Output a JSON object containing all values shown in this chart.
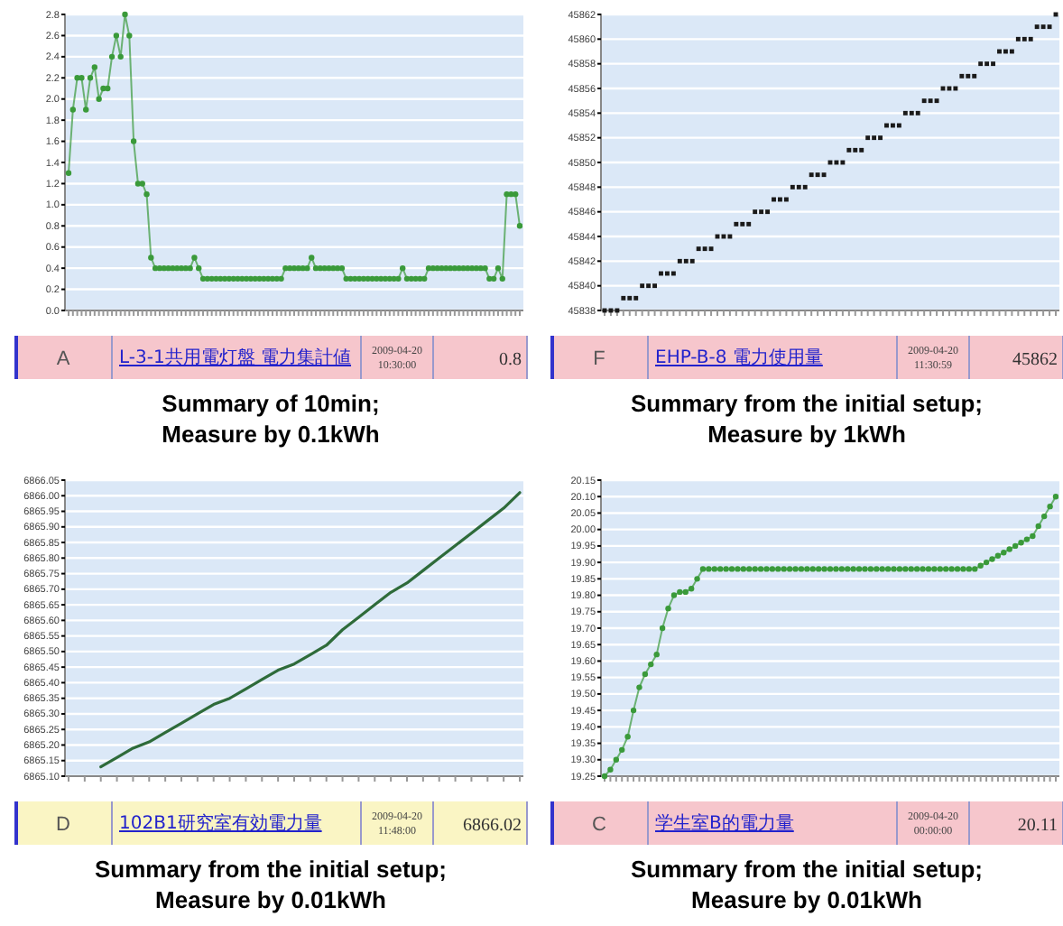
{
  "chart_data": [
    {
      "type": "line",
      "title": "Summary of 10min;",
      "subtitle": "Measure by 0.1kWh",
      "marker": "circle",
      "grid": "y",
      "ylim": [
        0,
        2.8
      ],
      "yticks": [
        {
          "value": 0,
          "label": "0.0"
        },
        0.2,
        0.4,
        0.6,
        0.8,
        {
          "value": 1,
          "label": "1.0"
        },
        1.2,
        1.4,
        1.6,
        1.8,
        {
          "value": 2,
          "label": "2.0"
        },
        2.2,
        2.4,
        2.6,
        2.8
      ],
      "annotations": [
        "A",
        "L-3-1共用電灯盤 電力集計値",
        "2009-04-20 10:30:00",
        "0.8"
      ],
      "categories": [
        null,
        null,
        null,
        null,
        null,
        null,
        null,
        null,
        null,
        null,
        null,
        null,
        null,
        null,
        null,
        null,
        null,
        null,
        null,
        null,
        null,
        null,
        null,
        null,
        null,
        null,
        null,
        null,
        null,
        null,
        null,
        null,
        null,
        null,
        null,
        null,
        null,
        null,
        null,
        null,
        null,
        null,
        null,
        null,
        null,
        null,
        null,
        null,
        null,
        null,
        null,
        null,
        null,
        null,
        null,
        null,
        null,
        null,
        null,
        null,
        null,
        null,
        null,
        null,
        null,
        null,
        null,
        null,
        null,
        null,
        null,
        null,
        null,
        null,
        null,
        null,
        null,
        null,
        null,
        null,
        null,
        null,
        null,
        null,
        null,
        null,
        null,
        null,
        null,
        null,
        null,
        null,
        null,
        null,
        null,
        null,
        null,
        null,
        null,
        null,
        null,
        null,
        null,
        null,
        null
      ],
      "series": [
        {
          "color": "#3a9a3a",
          "values": [
            1.3,
            1.9,
            2.2,
            2.2,
            1.9,
            2.2,
            2.3,
            2.0,
            2.1,
            2.1,
            2.4,
            2.6,
            2.4,
            2.8,
            2.6,
            1.6,
            1.2,
            1.2,
            1.1,
            0.5,
            0.4,
            0.4,
            0.4,
            0.4,
            0.4,
            0.4,
            0.4,
            0.4,
            0.4,
            0.5,
            0.4,
            0.3,
            0.3,
            0.3,
            0.3,
            0.3,
            0.3,
            0.3,
            0.3,
            0.3,
            0.3,
            0.3,
            0.3,
            0.3,
            0.3,
            0.3,
            0.3,
            0.3,
            0.3,
            0.3,
            0.4,
            0.4,
            0.4,
            0.4,
            0.4,
            0.4,
            0.5,
            0.4,
            0.4,
            0.4,
            0.4,
            0.4,
            0.4,
            0.4,
            0.3,
            0.3,
            0.3,
            0.3,
            0.3,
            0.3,
            0.3,
            0.3,
            0.3,
            0.3,
            0.3,
            0.3,
            0.3,
            0.4,
            0.3,
            0.3,
            0.3,
            0.3,
            0.3,
            0.4,
            0.4,
            0.4,
            0.4,
            0.4,
            0.4,
            0.4,
            0.4,
            0.4,
            0.4,
            0.4,
            0.4,
            0.4,
            0.4,
            0.3,
            0.3,
            0.4,
            0.3,
            1.1,
            1.1,
            1.1,
            0.8
          ]
        }
      ]
    },
    {
      "type": "scatter",
      "title": "Summary from the initial setup;",
      "subtitle": "Measure by 1kWh",
      "marker": "square",
      "grid": "y",
      "ylim": [
        45838,
        45862
      ],
      "yticks": [
        45838,
        45840,
        45842,
        45844,
        45846,
        45848,
        45850,
        45852,
        45854,
        45856,
        45858,
        45860,
        45862
      ],
      "annotations": [
        "F",
        "EHP-B-8 電力使用量",
        "2009-04-20 11:30:59",
        "45862"
      ],
      "categories": [
        null,
        null,
        null,
        null,
        null,
        null,
        null,
        null,
        null,
        null,
        null,
        null,
        null,
        null,
        null,
        null,
        null,
        null,
        null,
        null,
        null,
        null,
        null,
        null,
        null,
        null,
        null,
        null,
        null,
        null,
        null,
        null,
        null,
        null,
        null,
        null,
        null,
        null,
        null,
        null,
        null,
        null,
        null,
        null,
        null,
        null,
        null,
        null,
        null,
        null,
        null,
        null,
        null,
        null,
        null,
        null,
        null,
        null,
        null,
        null,
        null,
        null,
        null,
        null,
        null,
        null,
        null,
        null,
        null,
        null,
        null,
        null,
        null
      ],
      "series": [
        {
          "color": "#1a1a1a",
          "values": [
            45838,
            45838,
            45838,
            45839,
            45839,
            45839,
            45840,
            45840,
            45840,
            45841,
            45841,
            45841,
            45842,
            45842,
            45842,
            45843,
            45843,
            45843,
            45844,
            45844,
            45844,
            45845,
            45845,
            45845,
            45846,
            45846,
            45846,
            45847,
            45847,
            45847,
            45848,
            45848,
            45848,
            45849,
            45849,
            45849,
            45850,
            45850,
            45850,
            45851,
            45851,
            45851,
            45852,
            45852,
            45852,
            45853,
            45853,
            45853,
            45854,
            45854,
            45854,
            45855,
            45855,
            45855,
            45856,
            45856,
            45856,
            45857,
            45857,
            45857,
            45858,
            45858,
            45858,
            45859,
            45859,
            45859,
            45860,
            45860,
            45860,
            45861,
            45861,
            45861,
            45862
          ]
        }
      ]
    },
    {
      "type": "line",
      "title": "Summary from the initial setup;",
      "subtitle": "Measure by 0.01kWh",
      "grid": "y",
      "ylim": [
        6865.1,
        6866.05
      ],
      "yticks": [
        {
          "value": 6865.1,
          "label": "6865.10"
        },
        6865.15,
        {
          "value": 6865.2,
          "label": "6865.20"
        },
        6865.25,
        {
          "value": 6865.3,
          "label": "6865.30"
        },
        6865.35,
        {
          "value": 6865.4,
          "label": "6865.40"
        },
        6865.45,
        {
          "value": 6865.5,
          "label": "6865.50"
        },
        6865.55,
        {
          "value": 6865.6,
          "label": "6865.60"
        },
        6865.65,
        {
          "value": 6865.7,
          "label": "6865.70"
        },
        6865.75,
        {
          "value": 6865.8,
          "label": "6865.80"
        },
        6865.85,
        {
          "value": 6865.9,
          "label": "6865.90"
        },
        6865.95,
        {
          "value": 6866,
          "label": "6866.00"
        },
        6866.05
      ],
      "annotations": [
        "D",
        "102B1研究室有効電力量",
        "2009-04-20 11:48:00",
        "6866.02"
      ],
      "categories": [
        null,
        null,
        null,
        null,
        null,
        null,
        null,
        null,
        null,
        null,
        null,
        null,
        null,
        null,
        null,
        null,
        null,
        null,
        null,
        null,
        null,
        null,
        null,
        null,
        null,
        null,
        null,
        null,
        null
      ],
      "series": [
        {
          "color": "#2e6b3a",
          "values": [
            null,
            null,
            6865.13,
            6865.16,
            6865.19,
            6865.21,
            6865.24,
            6865.27,
            6865.3,
            6865.33,
            6865.35,
            6865.38,
            6865.41,
            6865.44,
            6865.46,
            6865.49,
            6865.52,
            6865.57,
            6865.61,
            6865.65,
            6865.69,
            6865.72,
            6865.76,
            6865.8,
            6865.84,
            6865.88,
            6865.92,
            6865.96,
            6866.01
          ]
        }
      ]
    },
    {
      "type": "line",
      "title": "Summary from the initial setup;",
      "subtitle": "Measure by 0.01kWh",
      "marker": "circle",
      "grid": "y",
      "ylim": [
        19.25,
        20.15
      ],
      "yticks": [
        19.25,
        {
          "value": 19.3,
          "label": "19.30"
        },
        19.35,
        {
          "value": 19.4,
          "label": "19.40"
        },
        19.45,
        {
          "value": 19.5,
          "label": "19.50"
        },
        19.55,
        {
          "value": 19.6,
          "label": "19.60"
        },
        19.65,
        {
          "value": 19.7,
          "label": "19.70"
        },
        19.75,
        {
          "value": 19.8,
          "label": "19.80"
        },
        19.85,
        {
          "value": 19.9,
          "label": "19.90"
        },
        19.95,
        {
          "value": 20,
          "label": "20.00"
        },
        20.05,
        {
          "value": 20.1,
          "label": "20.10"
        },
        20.15
      ],
      "annotations": [
        "C",
        "学生室B的電力量",
        "2009-04-20 00:00:00",
        "20.11"
      ],
      "categories": [
        null,
        null,
        null,
        null,
        null,
        null,
        null,
        null,
        null,
        null,
        null,
        null,
        null,
        null,
        null,
        null,
        null,
        null,
        null,
        null,
        null,
        null,
        null,
        null,
        null,
        null,
        null,
        null,
        null,
        null,
        null,
        null,
        null,
        null,
        null,
        null,
        null,
        null,
        null,
        null,
        null,
        null,
        null,
        null,
        null,
        null,
        null,
        null,
        null,
        null,
        null,
        null,
        null,
        null,
        null,
        null,
        null,
        null,
        null,
        null,
        null,
        null,
        null,
        null,
        null,
        null,
        null,
        null,
        null,
        null,
        null,
        null,
        null,
        null,
        null,
        null,
        null,
        null,
        null
      ],
      "series": [
        {
          "color": "#3a9a3a",
          "values": [
            19.25,
            19.27,
            19.3,
            19.33,
            19.37,
            19.45,
            19.52,
            19.56,
            19.59,
            19.62,
            19.7,
            19.76,
            19.8,
            19.81,
            19.81,
            19.82,
            19.85,
            19.88,
            19.88,
            19.88,
            19.88,
            19.88,
            19.88,
            19.88,
            19.88,
            19.88,
            19.88,
            19.88,
            19.88,
            19.88,
            19.88,
            19.88,
            19.88,
            19.88,
            19.88,
            19.88,
            19.88,
            19.88,
            19.88,
            19.88,
            19.88,
            19.88,
            19.88,
            19.88,
            19.88,
            19.88,
            19.88,
            19.88,
            19.88,
            19.88,
            19.88,
            19.88,
            19.88,
            19.88,
            19.88,
            19.88,
            19.88,
            19.88,
            19.88,
            19.88,
            19.88,
            19.88,
            19.88,
            19.88,
            19.88,
            19.89,
            19.9,
            19.91,
            19.92,
            19.93,
            19.94,
            19.95,
            19.96,
            19.97,
            19.98,
            20.01,
            20.04,
            20.07,
            20.1
          ]
        }
      ]
    }
  ]
}
